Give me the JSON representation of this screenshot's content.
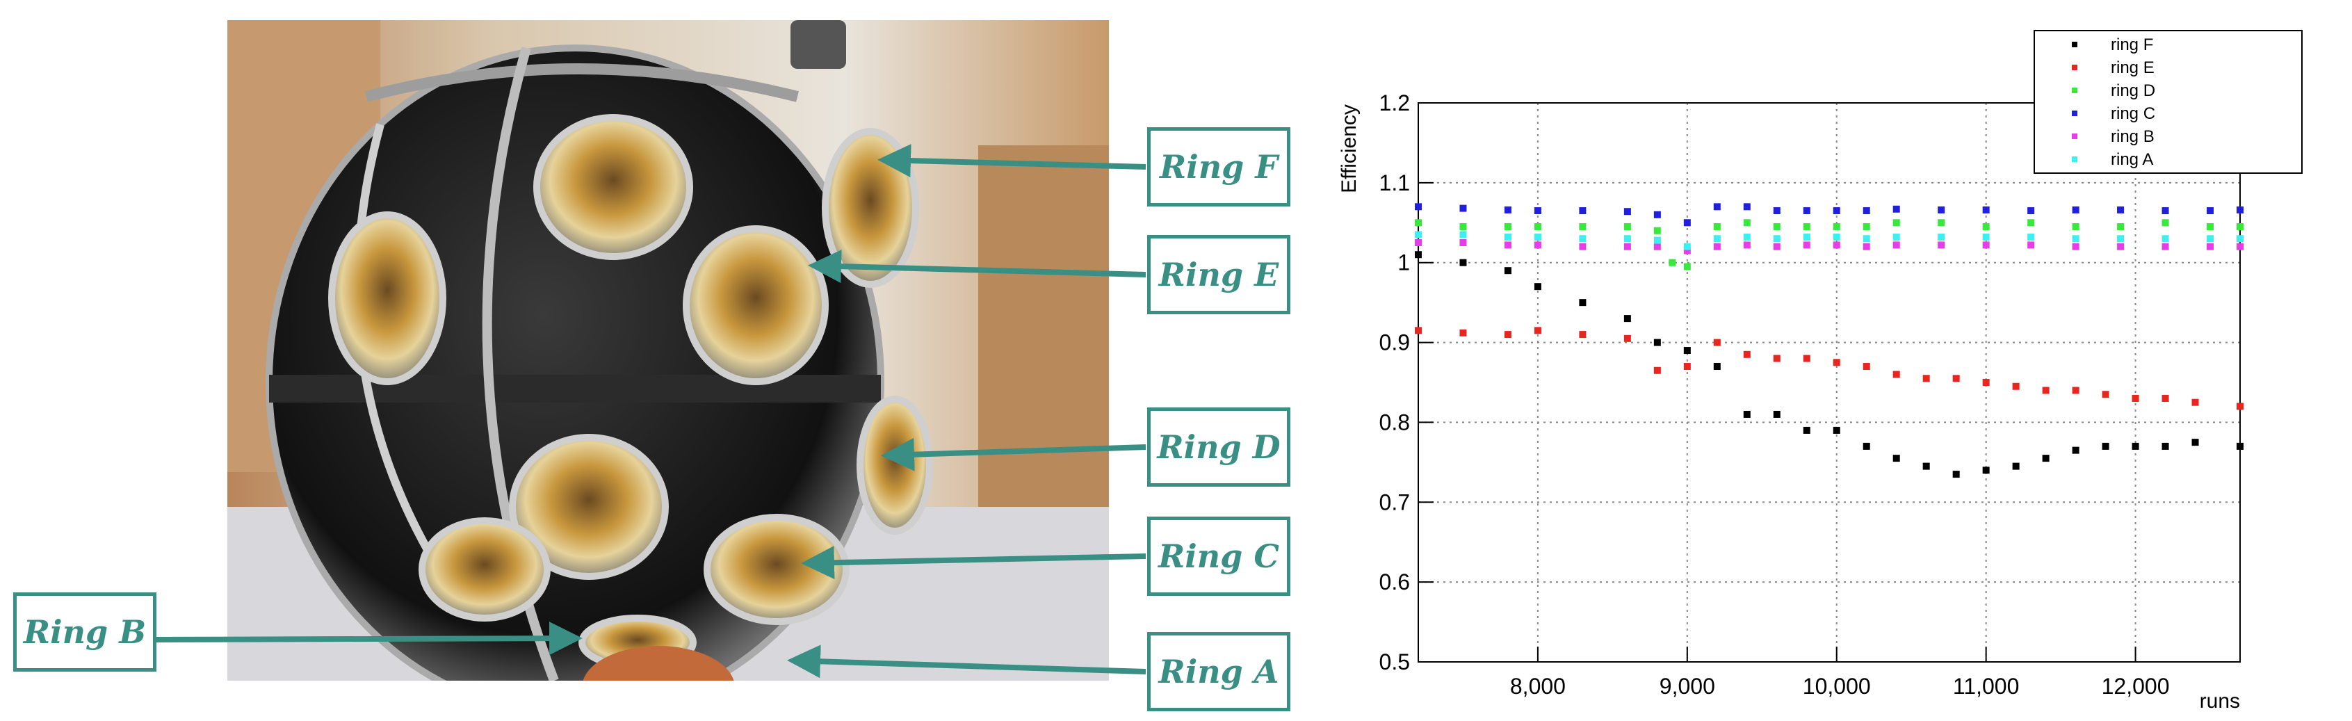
{
  "callouts": {
    "ring_f": "Ring F",
    "ring_e": "Ring E",
    "ring_d": "Ring D",
    "ring_c": "Ring C",
    "ring_b": "Ring B",
    "ring_a": "Ring A"
  },
  "colors": {
    "callout": "#3a8f84",
    "ring_F": "#000000",
    "ring_E": "#e8261f",
    "ring_D": "#39e83c",
    "ring_C": "#1f1fdc",
    "ring_B": "#e83ce8",
    "ring_A": "#3cf0f0"
  },
  "chart_data": {
    "type": "scatter",
    "xlabel": "runs",
    "ylabel": "Efficiency",
    "xlim": [
      7200,
      12700
    ],
    "ylim": [
      0.5,
      1.2
    ],
    "x_ticks": [
      8000,
      9000,
      10000,
      11000,
      12000
    ],
    "x_tick_labels": [
      "8,000",
      "9,000",
      "10,000",
      "11,000",
      "12,000"
    ],
    "y_ticks": [
      0.5,
      0.6,
      0.7,
      0.8,
      0.9,
      1.0,
      1.1,
      1.2
    ],
    "y_tick_labels": [
      "0.5",
      "0.6",
      "0.7",
      "0.8",
      "0.9",
      "1",
      "1.1",
      "1.2"
    ],
    "grid": true,
    "legend_position": "top-right",
    "series": [
      {
        "name": "ring F",
        "color": "#000000",
        "x": [
          7200,
          7500,
          7800,
          8000,
          8300,
          8600,
          8800,
          9000,
          9200,
          9400,
          9600,
          9800,
          10000,
          10200,
          10400,
          10600,
          10800,
          11000,
          11200,
          11400,
          11600,
          11800,
          12000,
          12200,
          12400,
          12700
        ],
        "y": [
          1.01,
          1.0,
          0.99,
          0.97,
          0.95,
          0.93,
          0.9,
          0.89,
          0.87,
          0.81,
          0.81,
          0.79,
          0.79,
          0.77,
          0.755,
          0.745,
          0.735,
          0.74,
          0.745,
          0.755,
          0.765,
          0.77,
          0.77,
          0.77,
          0.775,
          0.77
        ]
      },
      {
        "name": "ring E",
        "color": "#e8261f",
        "x": [
          7200,
          7500,
          7800,
          8000,
          8300,
          8600,
          8800,
          9000,
          9200,
          9400,
          9600,
          9800,
          10000,
          10200,
          10400,
          10600,
          10800,
          11000,
          11200,
          11400,
          11600,
          11800,
          12000,
          12200,
          12400,
          12700
        ],
        "y": [
          0.915,
          0.912,
          0.91,
          0.915,
          0.91,
          0.905,
          0.865,
          0.87,
          0.9,
          0.885,
          0.88,
          0.88,
          0.875,
          0.87,
          0.86,
          0.855,
          0.855,
          0.85,
          0.845,
          0.84,
          0.84,
          0.835,
          0.83,
          0.83,
          0.825,
          0.82
        ]
      },
      {
        "name": "ring D",
        "color": "#39e83c",
        "x": [
          7200,
          7500,
          7800,
          8000,
          8300,
          8600,
          8800,
          8900,
          9000,
          9200,
          9400,
          9600,
          9800,
          10000,
          10200,
          10400,
          10700,
          11000,
          11300,
          11600,
          11900,
          12200,
          12500,
          12700
        ],
        "y": [
          1.05,
          1.045,
          1.045,
          1.045,
          1.045,
          1.045,
          1.04,
          1.0,
          0.995,
          1.045,
          1.05,
          1.045,
          1.045,
          1.045,
          1.045,
          1.05,
          1.05,
          1.045,
          1.05,
          1.045,
          1.045,
          1.05,
          1.045,
          1.045
        ]
      },
      {
        "name": "ring C",
        "color": "#1f1fdc",
        "x": [
          7200,
          7500,
          7800,
          8000,
          8300,
          8600,
          8800,
          9000,
          9200,
          9400,
          9600,
          9800,
          10000,
          10200,
          10400,
          10700,
          11000,
          11300,
          11600,
          11900,
          12200,
          12500,
          12700
        ],
        "y": [
          1.07,
          1.068,
          1.066,
          1.065,
          1.065,
          1.064,
          1.06,
          1.05,
          1.07,
          1.07,
          1.065,
          1.065,
          1.065,
          1.065,
          1.067,
          1.066,
          1.066,
          1.065,
          1.066,
          1.066,
          1.065,
          1.065,
          1.066
        ]
      },
      {
        "name": "ring B",
        "color": "#e83ce8",
        "x": [
          7200,
          7500,
          7800,
          8000,
          8300,
          8600,
          8800,
          9000,
          9200,
          9400,
          9600,
          9800,
          10000,
          10200,
          10400,
          10700,
          11000,
          11300,
          11600,
          11900,
          12200,
          12500,
          12700
        ],
        "y": [
          1.025,
          1.025,
          1.022,
          1.022,
          1.02,
          1.02,
          1.02,
          1.015,
          1.02,
          1.022,
          1.02,
          1.022,
          1.022,
          1.02,
          1.022,
          1.022,
          1.022,
          1.022,
          1.02,
          1.02,
          1.02,
          1.02,
          1.02
        ]
      },
      {
        "name": "ring A",
        "color": "#3cf0f0",
        "x": [
          7200,
          7500,
          7800,
          8000,
          8300,
          8600,
          8800,
          9000,
          9200,
          9400,
          9600,
          9800,
          10000,
          10200,
          10400,
          10700,
          11000,
          11300,
          11600,
          11900,
          12200,
          12500,
          12700
        ],
        "y": [
          1.035,
          1.035,
          1.032,
          1.032,
          1.03,
          1.03,
          1.028,
          1.02,
          1.03,
          1.032,
          1.03,
          1.032,
          1.032,
          1.03,
          1.032,
          1.032,
          1.032,
          1.032,
          1.03,
          1.03,
          1.03,
          1.03,
          1.03
        ]
      }
    ]
  }
}
